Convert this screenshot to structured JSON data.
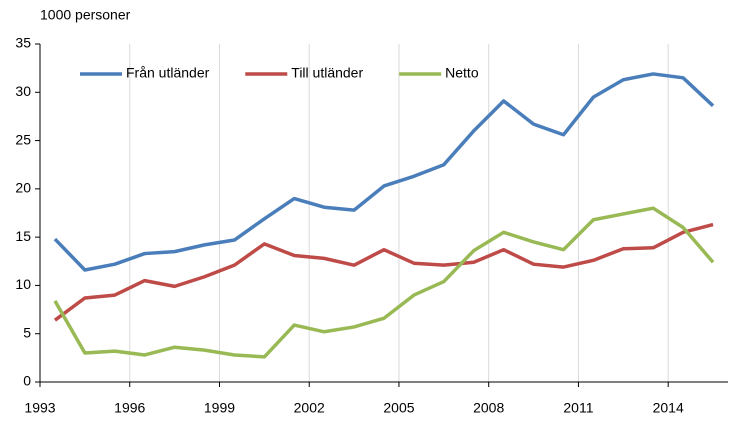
{
  "chart_data": {
    "type": "line",
    "y_axis_label": "1000 personer",
    "categories": [
      "1993",
      null,
      null,
      "1996",
      null,
      null,
      "1999",
      null,
      null,
      "2002",
      null,
      null,
      "2005",
      null,
      null,
      "2008",
      null,
      null,
      "2011",
      null,
      null,
      "2014",
      null
    ],
    "series": [
      {
        "name": "Från utländer",
        "color": "#4a7ebb",
        "values": [
          14.8,
          11.6,
          12.2,
          13.3,
          13.5,
          14.2,
          14.7,
          16.9,
          19.0,
          18.1,
          17.8,
          20.3,
          21.3,
          22.5,
          26.0,
          29.1,
          26.7,
          25.6,
          29.5,
          31.3,
          31.9,
          31.5,
          28.6
        ]
      },
      {
        "name": "Till utländer",
        "color": "#be4b48",
        "values": [
          6.4,
          8.7,
          9.0,
          10.5,
          9.9,
          10.9,
          12.1,
          14.3,
          13.1,
          12.8,
          12.1,
          13.7,
          12.3,
          12.1,
          12.4,
          13.7,
          12.2,
          11.9,
          12.6,
          13.8,
          13.9,
          15.5,
          16.3
        ]
      },
      {
        "name": "Netto",
        "color": "#98b954",
        "values": [
          8.4,
          3.0,
          3.2,
          2.8,
          3.6,
          3.3,
          2.8,
          2.6,
          5.9,
          5.2,
          5.7,
          6.6,
          9.0,
          10.4,
          13.6,
          15.5,
          14.5,
          13.7,
          16.8,
          17.4,
          18.0,
          16.0,
          12.4
        ]
      }
    ],
    "ylim": [
      0,
      35
    ],
    "yticks": [
      0,
      5,
      10,
      15,
      20,
      25,
      30,
      35
    ],
    "xgrid": true,
    "legend": "top-left"
  }
}
